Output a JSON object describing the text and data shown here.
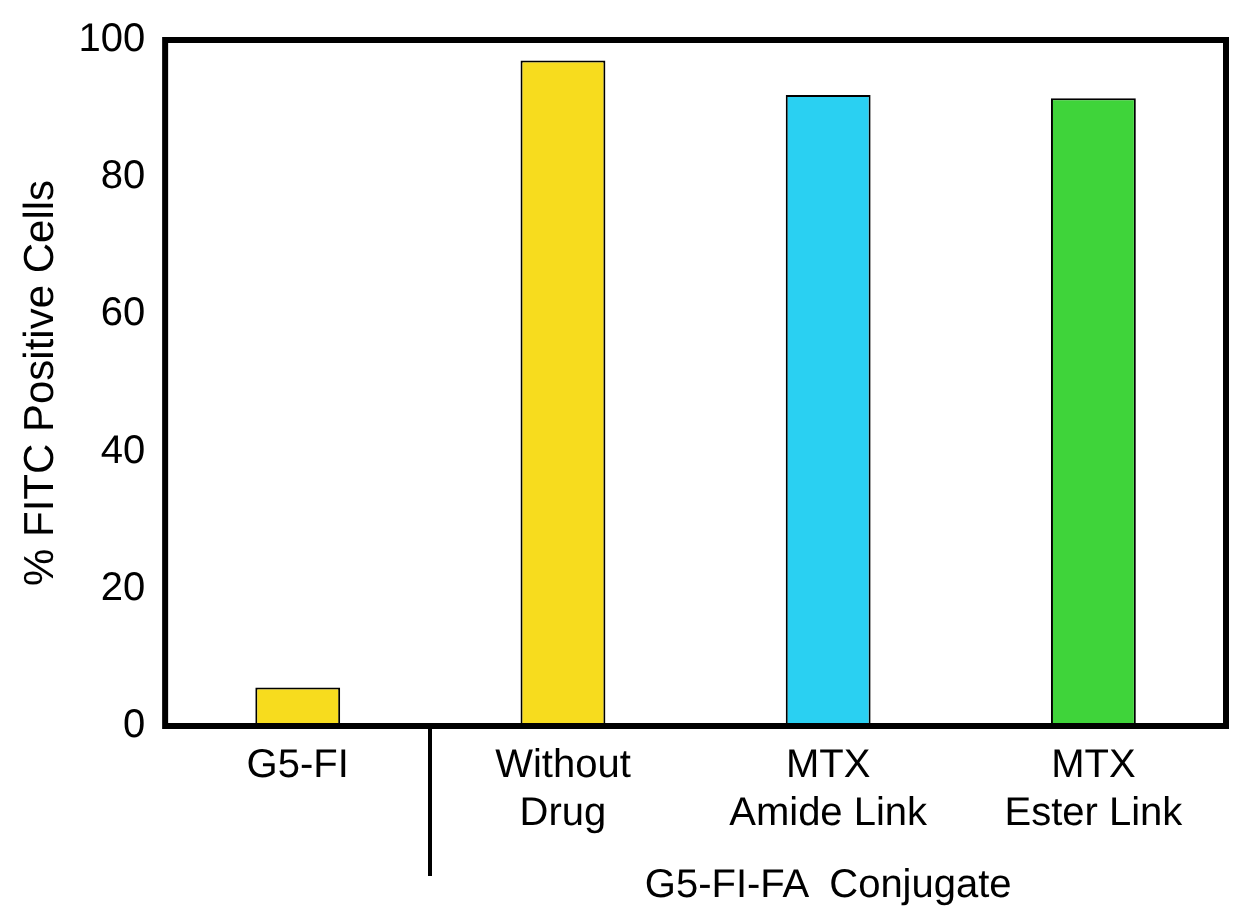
{
  "chart_data": {
    "type": "bar",
    "categories": [
      "G5-FI",
      "Without\nDrug",
      "MTX\nAmide Link",
      "MTX\nEster Link"
    ],
    "values": [
      5.6,
      97,
      92,
      91.5
    ],
    "colors": [
      "#f7dc1e",
      "#f7dc1e",
      "#2ad0f2",
      "#3fd43a"
    ],
    "ylabel": "% FITC Positive Cells",
    "xlabel": "G5-FI-FA  Conjugate",
    "ylim": [
      0,
      100
    ],
    "yticks": [
      0,
      20,
      40,
      60,
      80,
      100
    ],
    "grid": false,
    "legend": false
  }
}
